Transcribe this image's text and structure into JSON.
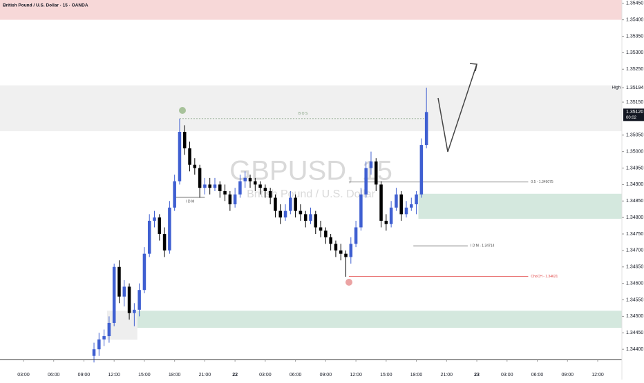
{
  "chart_data": {
    "type": "candlestick",
    "title": "British Pound / U.S. Dollar · 15 · OANDA",
    "watermark": "GBPUSD, 15",
    "watermark_subtitle": "British Pound / U.S. Dollar",
    "up_color": "#3f5fd1",
    "down_color": "#000000",
    "xlim": [
      0.67,
      62.4
    ],
    "ylim": [
      1.34371,
      1.3546
    ],
    "xticks": [
      {
        "value": 3,
        "label": "03:00"
      },
      {
        "value": 6,
        "label": "06:00"
      },
      {
        "value": 9,
        "label": "09:00"
      },
      {
        "value": 12,
        "label": "12:00"
      },
      {
        "value": 15,
        "label": "15:00"
      },
      {
        "value": 18,
        "label": "18:00"
      },
      {
        "value": 21,
        "label": "21:00"
      },
      {
        "value": 24,
        "label": "22"
      },
      {
        "value": 27,
        "label": "03:00"
      },
      {
        "value": 30,
        "label": "06:00"
      },
      {
        "value": 33,
        "label": "09:00"
      },
      {
        "value": 36,
        "label": "12:00"
      },
      {
        "value": 39,
        "label": "15:00"
      },
      {
        "value": 42,
        "label": "18:00"
      },
      {
        "value": 45,
        "label": "21:00"
      },
      {
        "value": 48,
        "label": "23"
      },
      {
        "value": 51,
        "label": "03:00"
      },
      {
        "value": 54,
        "label": "06:00"
      },
      {
        "value": 57,
        "label": "09:00"
      },
      {
        "value": 60,
        "label": "12:00"
      }
    ],
    "yticks": [
      {
        "value": 1.3545,
        "label": "1.35450"
      },
      {
        "value": 1.354,
        "label": "1.35400"
      },
      {
        "value": 1.3535,
        "label": "1.35350"
      },
      {
        "value": 1.353,
        "label": "1.35300"
      },
      {
        "value": 1.3525,
        "label": "1.35250"
      },
      {
        "value": 1.3515,
        "label": "1.35150"
      },
      {
        "value": 1.3505,
        "label": "1.35050"
      },
      {
        "value": 1.35,
        "label": "1.35000"
      },
      {
        "value": 1.3495,
        "label": "1.34950"
      },
      {
        "value": 1.349,
        "label": "1.34900"
      },
      {
        "value": 1.3485,
        "label": "1.34850"
      },
      {
        "value": 1.348,
        "label": "1.34800"
      },
      {
        "value": 1.3475,
        "label": "1.34750"
      },
      {
        "value": 1.347,
        "label": "1.34700"
      },
      {
        "value": 1.3465,
        "label": "1.34650"
      },
      {
        "value": 1.346,
        "label": "1.34600"
      },
      {
        "value": 1.3455,
        "label": "1.34550"
      },
      {
        "value": 1.345,
        "label": "1.34500"
      },
      {
        "value": 1.3445,
        "label": "1.34450"
      },
      {
        "value": 1.344,
        "label": "1.34400"
      }
    ],
    "high_marker": {
      "label": "High",
      "value": 1.35194,
      "value_label": "1.35194"
    },
    "last_price": {
      "value": 1.3512,
      "label": "1.35120",
      "timer": "00:02"
    },
    "x": [
      10,
      10.5,
      11,
      11.5,
      12,
      12.5,
      13,
      13.5,
      14,
      14.5,
      15,
      15.5,
      16,
      16.5,
      17,
      17.5,
      18,
      18.5,
      19,
      19.5,
      20,
      20.5,
      21,
      21.5,
      22,
      22.5,
      23,
      23.5,
      24,
      24.5,
      25,
      25.5,
      26,
      26.5,
      27,
      27.5,
      28,
      28.5,
      29,
      29.5,
      30,
      30.5,
      31,
      31.5,
      32,
      32.5,
      33,
      33.5,
      34,
      34.5,
      35,
      35.5,
      36,
      36.5,
      37,
      37.5,
      38,
      38.5,
      39,
      39.5,
      40,
      40.5,
      41,
      41.5,
      42,
      42.5,
      43
    ],
    "candles": [
      [
        1.3438,
        1.3442,
        1.3436,
        1.344
      ],
      [
        1.344,
        1.3445,
        1.3438,
        1.3443
      ],
      [
        1.3443,
        1.3446,
        1.3441,
        1.3444
      ],
      [
        1.3444,
        1.345,
        1.3442,
        1.3448
      ],
      [
        1.3448,
        1.3466,
        1.3447,
        1.3465
      ],
      [
        1.3465,
        1.3467,
        1.3454,
        1.3456
      ],
      [
        1.3456,
        1.3461,
        1.3453,
        1.3459
      ],
      [
        1.3459,
        1.346,
        1.3449,
        1.3451
      ],
      [
        1.3451,
        1.3454,
        1.3447,
        1.3452
      ],
      [
        1.3452,
        1.346,
        1.345,
        1.3458
      ],
      [
        1.3458,
        1.3471,
        1.3457,
        1.3469
      ],
      [
        1.3469,
        1.3481,
        1.3468,
        1.3479
      ],
      [
        1.3479,
        1.3482,
        1.3477,
        1.348
      ],
      [
        1.348,
        1.3481,
        1.3473,
        1.3475
      ],
      [
        1.3475,
        1.3477,
        1.3468,
        1.347
      ],
      [
        1.347,
        1.3485,
        1.3469,
        1.3483
      ],
      [
        1.3483,
        1.3493,
        1.3482,
        1.3491
      ],
      [
        1.3491,
        1.351,
        1.349,
        1.3506
      ],
      [
        1.3506,
        1.3508,
        1.3499,
        1.3501
      ],
      [
        1.3501,
        1.3503,
        1.3494,
        1.3496
      ],
      [
        1.3496,
        1.3498,
        1.3493,
        1.3495
      ],
      [
        1.3495,
        1.3496,
        1.3486,
        1.3489
      ],
      [
        1.3489,
        1.3492,
        1.3487,
        1.349
      ],
      [
        1.349,
        1.3492,
        1.3487,
        1.3489
      ],
      [
        1.3489,
        1.3492,
        1.3488,
        1.349
      ],
      [
        1.349,
        1.3491,
        1.3486,
        1.3488
      ],
      [
        1.3488,
        1.349,
        1.3485,
        1.3487
      ],
      [
        1.3487,
        1.3488,
        1.3482,
        1.3484
      ],
      [
        1.3484,
        1.3489,
        1.3483,
        1.3487
      ],
      [
        1.3487,
        1.3493,
        1.3486,
        1.3491
      ],
      [
        1.3491,
        1.3494,
        1.3489,
        1.3492
      ],
      [
        1.3492,
        1.3493,
        1.3489,
        1.3491
      ],
      [
        1.3491,
        1.3492,
        1.3488,
        1.349
      ],
      [
        1.349,
        1.3491,
        1.3487,
        1.3489
      ],
      [
        1.3489,
        1.349,
        1.3486,
        1.3488
      ],
      [
        1.3488,
        1.3489,
        1.3484,
        1.3486
      ],
      [
        1.3486,
        1.3487,
        1.348,
        1.3482
      ],
      [
        1.3482,
        1.3484,
        1.3478,
        1.348
      ],
      [
        1.348,
        1.3484,
        1.3479,
        1.3482
      ],
      [
        1.3482,
        1.3488,
        1.3481,
        1.3486
      ],
      [
        1.3486,
        1.3487,
        1.348,
        1.3482
      ],
      [
        1.3482,
        1.3484,
        1.3479,
        1.3481
      ],
      [
        1.3481,
        1.3482,
        1.3477,
        1.3479
      ],
      [
        1.3479,
        1.3483,
        1.3478,
        1.3481
      ],
      [
        1.3481,
        1.3482,
        1.3475,
        1.3477
      ],
      [
        1.3477,
        1.3479,
        1.3474,
        1.3476
      ],
      [
        1.3476,
        1.3477,
        1.3472,
        1.3474
      ],
      [
        1.3474,
        1.3475,
        1.347,
        1.3472
      ],
      [
        1.3472,
        1.3473,
        1.3468,
        1.347
      ],
      [
        1.347,
        1.3472,
        1.3467,
        1.3469
      ],
      [
        1.3469,
        1.347,
        1.3462,
        1.3468
      ],
      [
        1.3468,
        1.3474,
        1.3466,
        1.3472
      ],
      [
        1.3472,
        1.3479,
        1.3471,
        1.3477
      ],
      [
        1.3477,
        1.3489,
        1.3476,
        1.3487
      ],
      [
        1.3487,
        1.3497,
        1.3486,
        1.3495
      ],
      [
        1.3495,
        1.35,
        1.3493,
        1.3497
      ],
      [
        1.3497,
        1.3498,
        1.3488,
        1.349
      ],
      [
        1.349,
        1.3491,
        1.3477,
        1.3479
      ],
      [
        1.3479,
        1.3481,
        1.3476,
        1.3478
      ],
      [
        1.3478,
        1.3485,
        1.3477,
        1.3483
      ],
      [
        1.3483,
        1.3489,
        1.3482,
        1.3487
      ],
      [
        1.3487,
        1.3488,
        1.3479,
        1.3481
      ],
      [
        1.3481,
        1.3485,
        1.348,
        1.3483
      ],
      [
        1.3483,
        1.3486,
        1.3482,
        1.3484
      ],
      [
        1.3484,
        1.3488,
        1.3481,
        1.3487
      ],
      [
        1.3487,
        1.3504,
        1.3486,
        1.3502
      ],
      [
        1.3502,
        1.35194,
        1.3501,
        1.3512
      ]
    ],
    "zones": [
      {
        "top": 1.3546,
        "bottom": 1.354,
        "color": "#f7d8d8"
      },
      {
        "top": 1.35201,
        "bottom": 1.35062,
        "color": "#f0f0f0"
      },
      {
        "top": 1.34872,
        "bottom": 1.34796,
        "x_start": 42.2,
        "color": "#d4e8de"
      },
      {
        "top": 1.34517,
        "bottom": 1.34465,
        "x_start": 14.3,
        "color": "#d4e8de"
      },
      {
        "top": 1.34517,
        "bottom": 1.34429,
        "x_start": 11.3,
        "x_end": 14.3,
        "color": "#eeeeee"
      }
    ],
    "annotations": [
      {
        "label": "B O S",
        "price": 1.351,
        "x_start": 18.5,
        "x_end": 43,
        "color": "#7a9a78"
      },
      {
        "label": "I D M",
        "price": 1.34861,
        "x_start": 18.1,
        "x_end": 21,
        "color": "#444444"
      },
      {
        "label": "0.5 - 1.349075",
        "price": 1.349075,
        "x_start": 35.3,
        "x_end": 53.1,
        "color": "#555555"
      },
      {
        "label": "I D M - 1.34714",
        "price": 1.34714,
        "x_start": 41.7,
        "x_end": 47.1,
        "color": "#444444"
      },
      {
        "label": "ChoCH - 1.34621",
        "price": 1.34621,
        "x_start": 35.3,
        "x_end": 53.1,
        "color": "#e04040"
      }
    ]
  }
}
